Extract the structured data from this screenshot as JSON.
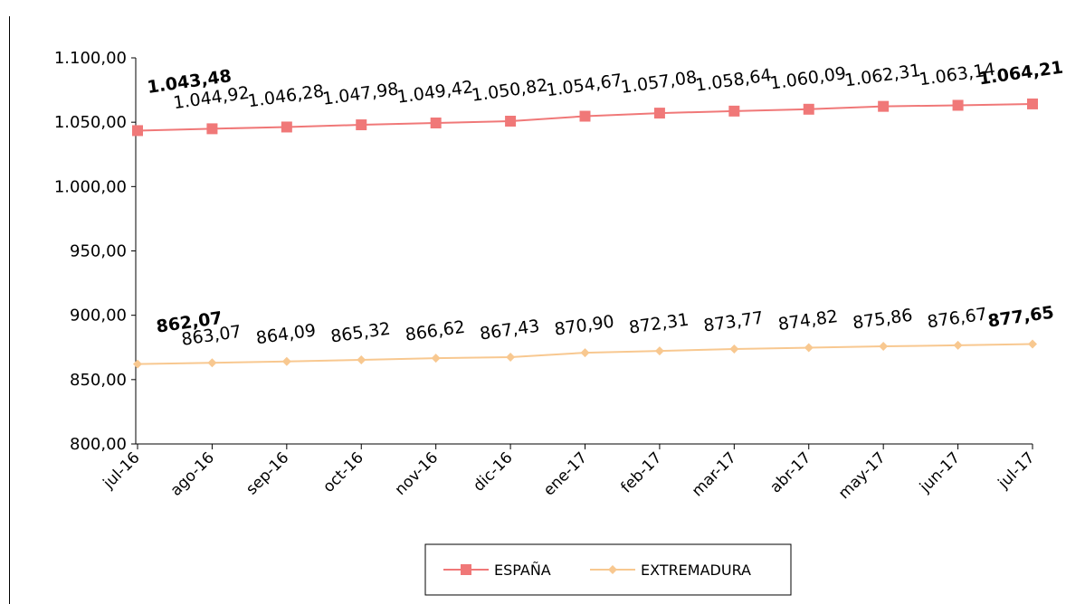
{
  "chart_data": {
    "type": "line",
    "categories": [
      "jul-16",
      "ago-16",
      "sep-16",
      "oct-16",
      "nov-16",
      "dic-16",
      "ene-17",
      "feb-17",
      "mar-17",
      "abr-17",
      "may-17",
      "jun-17",
      "jul-17"
    ],
    "series": [
      {
        "name": "ESPAÑA",
        "color": "#f07878",
        "marker": "square",
        "values": [
          1043.48,
          1044.92,
          1046.28,
          1047.98,
          1049.42,
          1050.82,
          1054.67,
          1057.08,
          1058.64,
          1060.09,
          1062.31,
          1063.14,
          1064.21
        ],
        "labels": [
          "1.043,48",
          "1.044,92",
          "1.046,28",
          "1.047,98",
          "1.049,42",
          "1.050,82",
          "1.054,67",
          "1.057,08",
          "1.058,64",
          "1.060,09",
          "1.062,31",
          "1.063,14",
          "1.064,21"
        ],
        "bold_labels": [
          0,
          12
        ]
      },
      {
        "name": "EXTREMADURA",
        "color": "#f8c890",
        "marker": "diamond",
        "values": [
          862.07,
          863.07,
          864.09,
          865.32,
          866.62,
          867.43,
          870.9,
          872.31,
          873.77,
          874.82,
          875.86,
          876.67,
          877.65
        ],
        "labels": [
          "862,07",
          "863,07",
          "864,09",
          "865,32",
          "866,62",
          "867,43",
          "870,90",
          "872,31",
          "873,77",
          "874,82",
          "875,86",
          "876,67",
          "877,65"
        ],
        "bold_labels": [
          0,
          12
        ]
      }
    ],
    "ylim": [
      800,
      1100
    ],
    "yticks": [
      800,
      850,
      900,
      950,
      1000,
      1050,
      1100
    ],
    "ytick_labels": [
      "800,00",
      "850,00",
      "900,00",
      "950,00",
      "1.000,00",
      "1.050,00",
      "1.100,00"
    ],
    "grid": false,
    "legend_position": "bottom",
    "title": "",
    "xlabel": "",
    "ylabel": ""
  }
}
